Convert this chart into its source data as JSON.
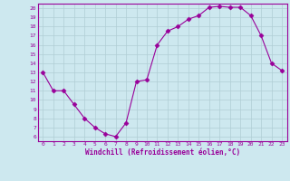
{
  "x": [
    0,
    1,
    2,
    3,
    4,
    5,
    6,
    7,
    8,
    9,
    10,
    11,
    12,
    13,
    14,
    15,
    16,
    17,
    18,
    19,
    20,
    21,
    22,
    23
  ],
  "y": [
    13,
    11,
    11,
    9.5,
    8,
    7,
    6.3,
    6,
    7.5,
    12,
    12.2,
    16,
    17.5,
    18,
    18.8,
    19.2,
    20.1,
    20.2,
    20.1,
    20.1,
    19.2,
    17,
    14,
    13.2
  ],
  "line_color": "#990099",
  "marker": "D",
  "marker_size": 2.5,
  "bg_color": "#cde8ef",
  "grid_color": "#b0cdd4",
  "xlabel": "Windchill (Refroidissement éolien,°C)",
  "xlim": [
    -0.5,
    23.5
  ],
  "ylim": [
    5.5,
    20.5
  ],
  "yticks": [
    6,
    7,
    8,
    9,
    10,
    11,
    12,
    13,
    14,
    15,
    16,
    17,
    18,
    19,
    20
  ],
  "xticks": [
    0,
    1,
    2,
    3,
    4,
    5,
    6,
    7,
    8,
    9,
    10,
    11,
    12,
    13,
    14,
    15,
    16,
    17,
    18,
    19,
    20,
    21,
    22,
    23
  ]
}
